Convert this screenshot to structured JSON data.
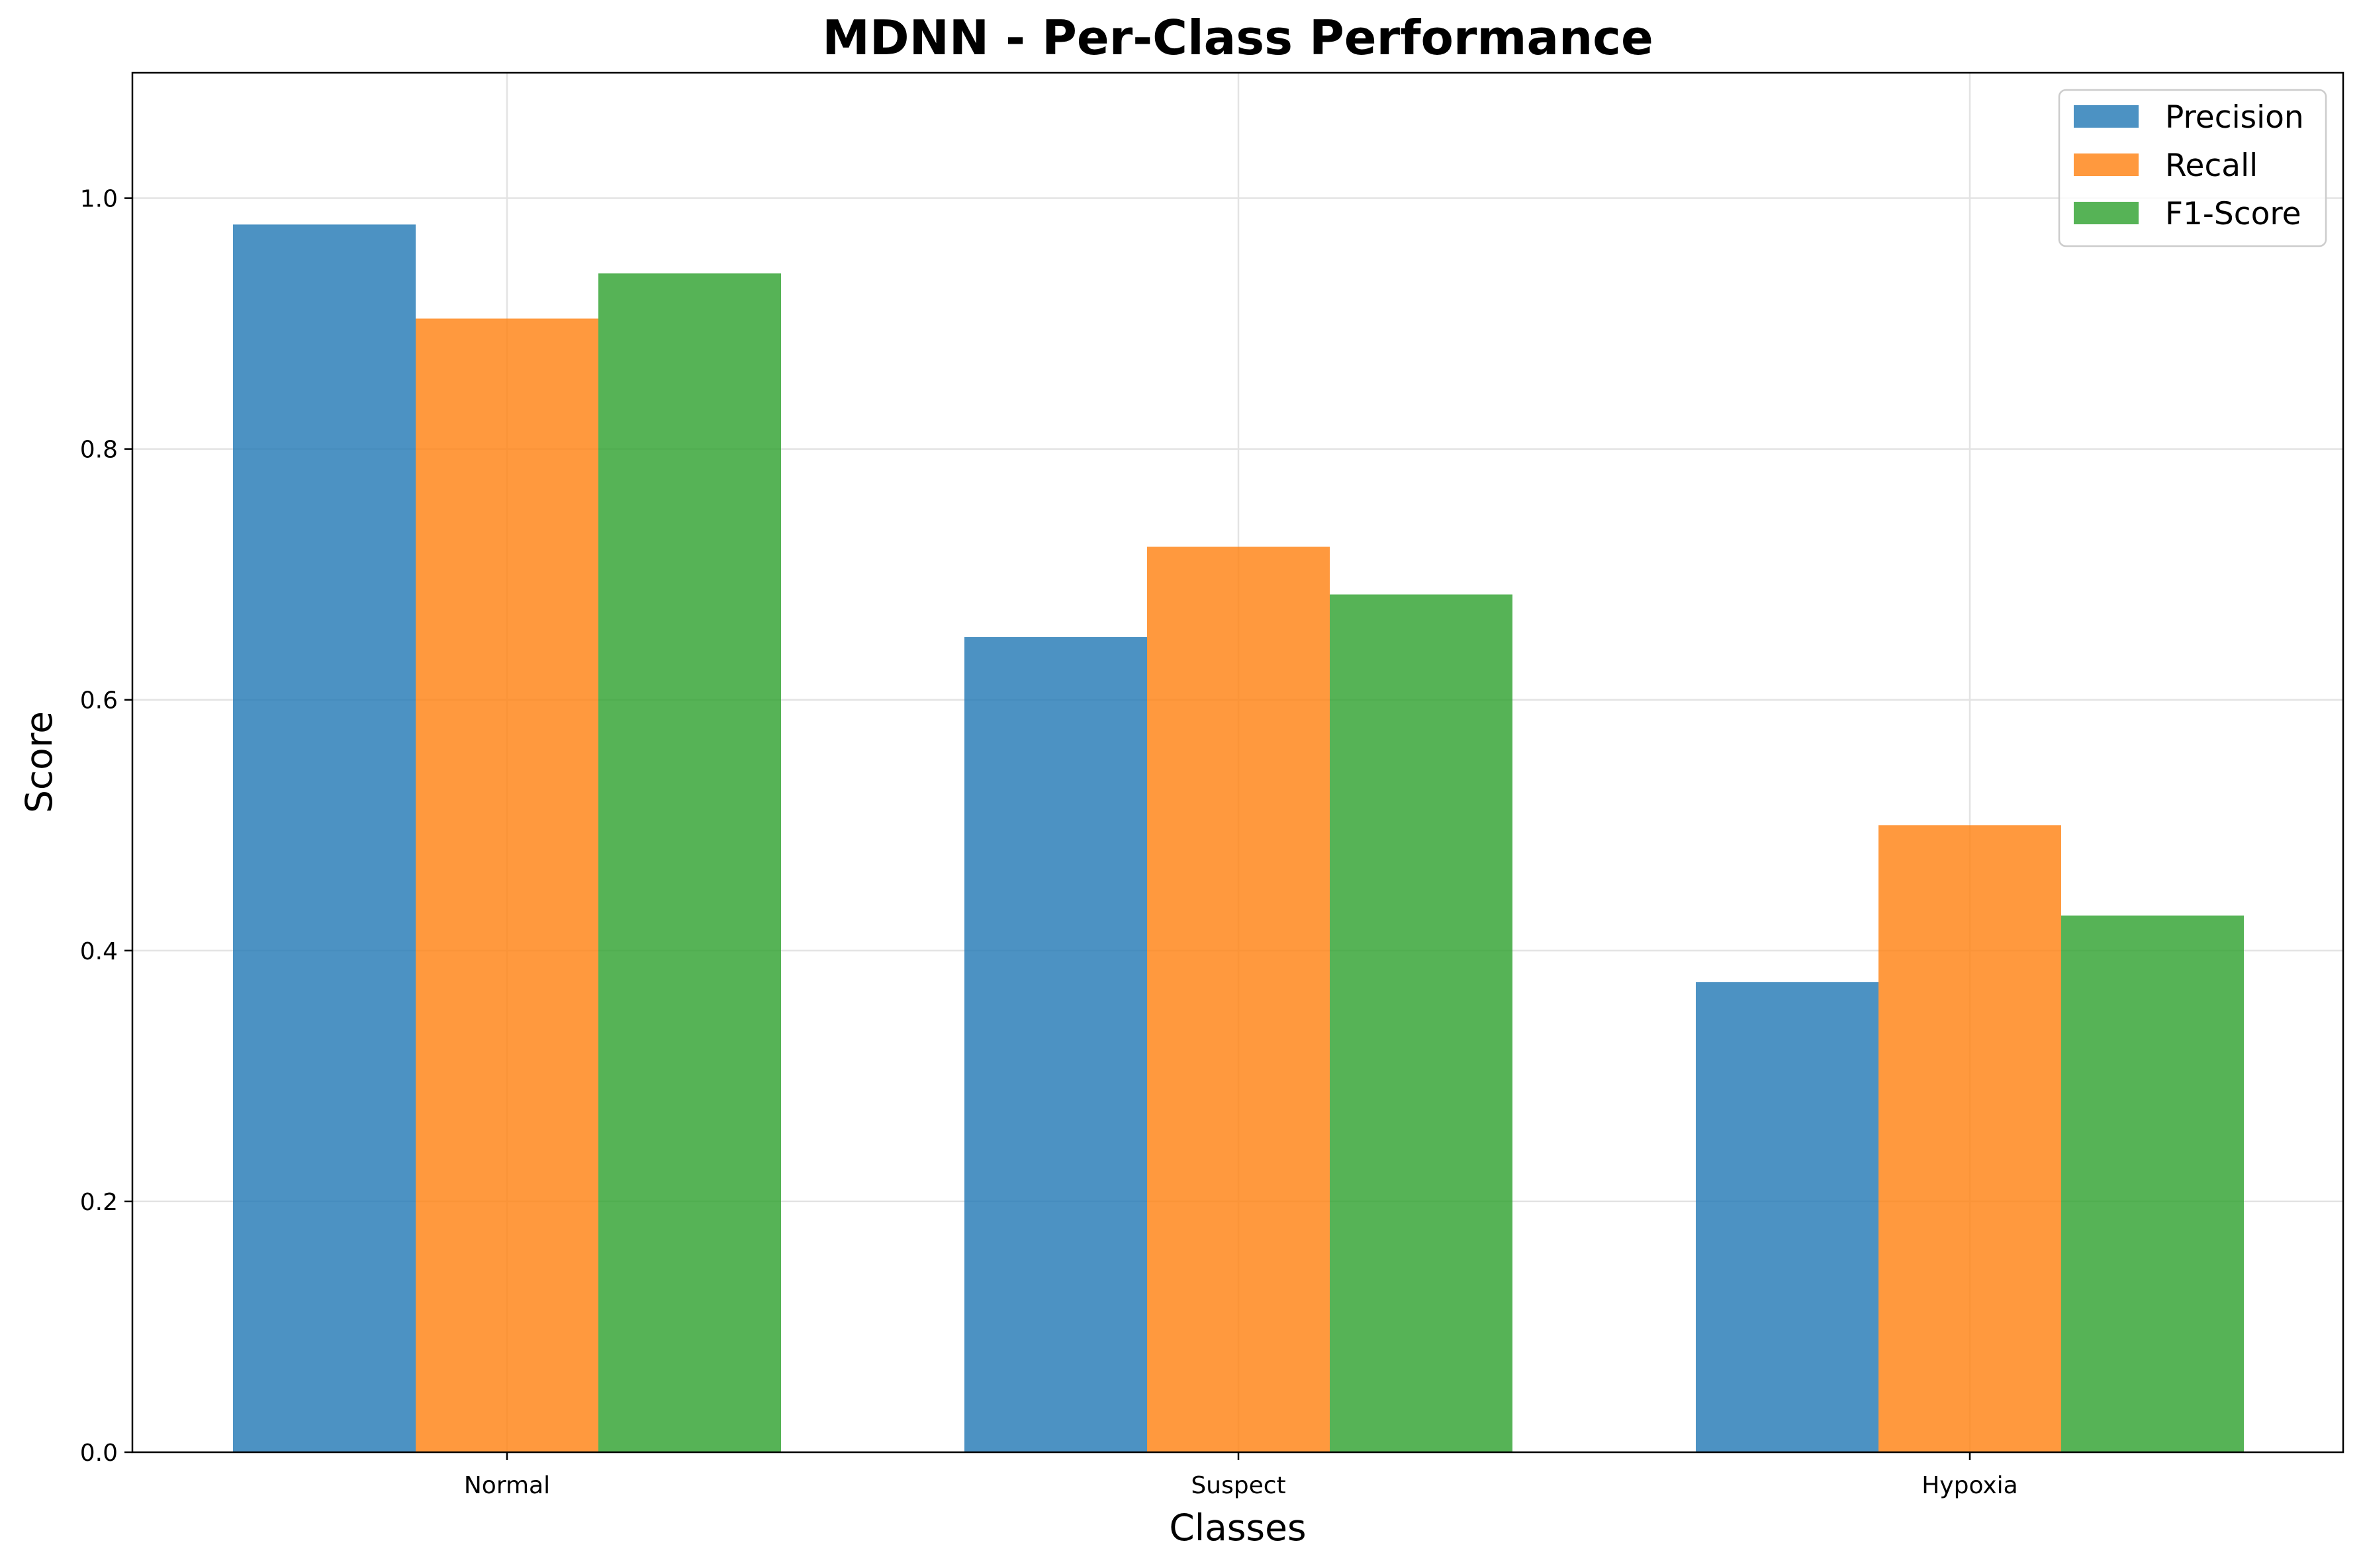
{
  "chart_data": {
    "type": "bar",
    "title": "MDNN - Per-Class Performance",
    "xlabel": "Classes",
    "ylabel": "Score",
    "categories": [
      "Normal",
      "Suspect",
      "Hypoxia"
    ],
    "series": [
      {
        "name": "Precision",
        "color": "#1f77b4",
        "values": [
          0.979,
          0.65,
          0.375
        ]
      },
      {
        "name": "Recall",
        "color": "#ff7f0e",
        "values": [
          0.904,
          0.722,
          0.5
        ]
      },
      {
        "name": "F1-Score",
        "color": "#2ca02c",
        "values": [
          0.94,
          0.684,
          0.428
        ]
      }
    ],
    "ylim": [
      0,
      1.1
    ],
    "yticks": [
      "0.0",
      "0.2",
      "0.4",
      "0.6",
      "0.8",
      "1.0"
    ],
    "grid": true,
    "bar_opacity": 0.8,
    "legend_position": "top-right"
  }
}
